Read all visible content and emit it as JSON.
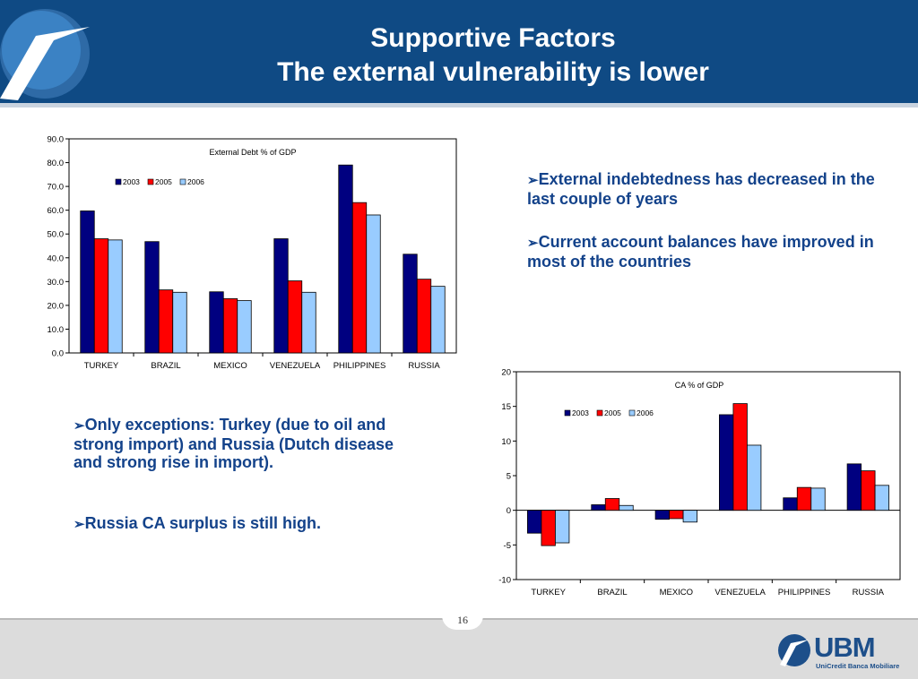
{
  "slide": {
    "title_line1": "Supportive Factors",
    "title_line2": "The external vulnerability is lower",
    "page_number": "16"
  },
  "bullets_right": [
    {
      "arrow": "➢",
      "text": "External indebtedness has decreased in the last couple of years"
    },
    {
      "arrow": "➢",
      "text": "Current account balances have improved in most of the countries"
    }
  ],
  "bullets_left": [
    {
      "arrow": "➢",
      "text": "Only exceptions: Turkey (due to oil and strong import) and Russia (Dutch disease and strong rise in import)."
    },
    {
      "arrow": "➢",
      "text": "Russia CA surplus is still high."
    }
  ],
  "logo": {
    "name": "UBM",
    "subtitle": "UniCredit Banca Mobiliare"
  },
  "colors": {
    "header": "#0f4a84",
    "bullet_text": "#13428a",
    "series_2003": "#000080",
    "series_2005": "#ff0000",
    "series_2006": "#99ccff"
  },
  "chart_data": [
    {
      "type": "bar",
      "title": "External Debt % of GDP",
      "categories": [
        "TURKEY",
        "BRAZIL",
        "MEXICO",
        "VENEZUELA",
        "PHILIPPINES",
        "RUSSIA"
      ],
      "series": [
        {
          "name": "2003",
          "values": [
            59.7,
            46.8,
            25.7,
            48.0,
            79.0,
            41.5
          ]
        },
        {
          "name": "2005",
          "values": [
            48.0,
            26.5,
            22.8,
            30.3,
            63.2,
            31.0
          ]
        },
        {
          "name": "2006",
          "values": [
            47.5,
            25.5,
            22.0,
            25.5,
            58.0,
            28.0
          ]
        }
      ],
      "ylim": [
        0,
        90
      ],
      "yticks": [
        "0.0",
        "10.0",
        "20.0",
        "30.0",
        "40.0",
        "50.0",
        "60.0",
        "70.0",
        "80.0",
        "90.0"
      ],
      "legend": "top-left",
      "grid": false
    },
    {
      "type": "bar",
      "title": "CA % of GDP",
      "categories": [
        "TURKEY",
        "BRAZIL",
        "MEXICO",
        "VENEZUELA",
        "PHILIPPINES",
        "RUSSIA"
      ],
      "series": [
        {
          "name": "2003",
          "values": [
            -3.3,
            0.8,
            -1.3,
            13.8,
            1.8,
            6.7
          ]
        },
        {
          "name": "2005",
          "values": [
            -5.1,
            1.7,
            -1.2,
            15.4,
            3.3,
            5.7
          ]
        },
        {
          "name": "2006",
          "values": [
            -4.7,
            0.7,
            -1.7,
            9.4,
            3.2,
            3.6
          ]
        }
      ],
      "ylim": [
        -10,
        20
      ],
      "yticks": [
        "-10",
        "-5",
        "0",
        "5",
        "10",
        "15",
        "20"
      ],
      "legend": "top-left",
      "grid": false
    }
  ]
}
